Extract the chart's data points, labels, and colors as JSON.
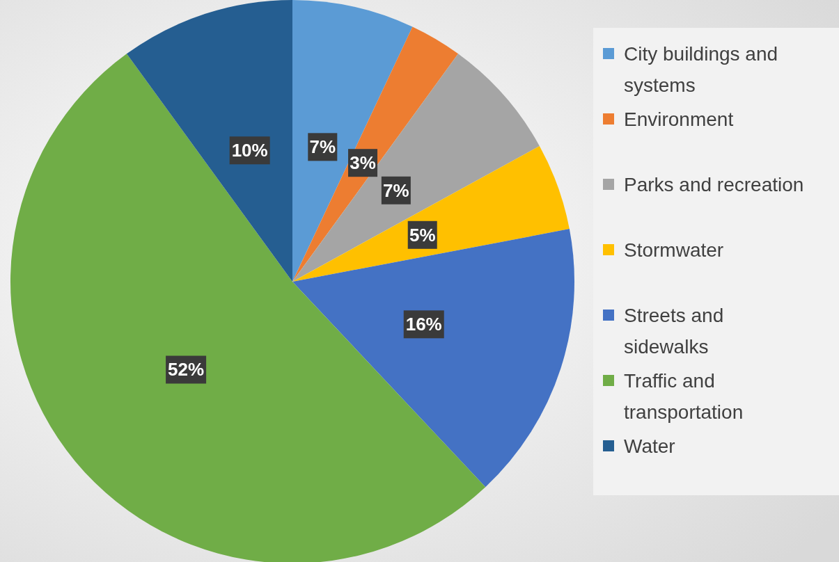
{
  "chart_data": {
    "type": "pie",
    "categories": [
      "City buildings and systems",
      "Environment",
      "Parks and recreation",
      "Stormwater",
      "Streets and sidewalks",
      "Traffic and transportation",
      "Water"
    ],
    "values": [
      7,
      3,
      7,
      5,
      16,
      52,
      10
    ],
    "colors": [
      "#5b9bd5",
      "#ed7d31",
      "#a5a5a5",
      "#ffc000",
      "#4472c4",
      "#70ad47",
      "#255e91"
    ],
    "value_labels": [
      "7%",
      "3%",
      "7%",
      "5%",
      "16%",
      "52%",
      "10%"
    ],
    "legend": "right"
  }
}
